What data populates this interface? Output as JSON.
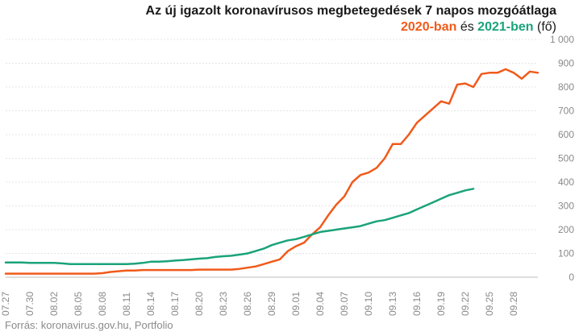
{
  "header": {
    "title": "Az új igazolt koronavírusos megbetegedések 7 napos mozgóátlaga",
    "subtitle_part1": "2020-ban",
    "subtitle_part2": " és ",
    "subtitle_part3": "2021-ben",
    "subtitle_part4": " (fő)"
  },
  "source": "Forrás: koronavirus.gov.hu, Portfolio",
  "colors": {
    "s2020": "#f05a1a",
    "s2021": "#1aa37a",
    "grid": "#e4e4e4",
    "text": "#8a8a8a"
  },
  "chart_data": {
    "type": "line",
    "title": "Az új igazolt koronavírusos megbetegedések 7 napos mozgóátlaga",
    "subtitle": "2020-ban és 2021-ben (fő)",
    "xlabel": "",
    "ylabel": "",
    "ylim": [
      0,
      1000
    ],
    "yticks": [
      "0",
      "100",
      "200",
      "300",
      "400",
      "500",
      "600",
      "700",
      "800",
      "900",
      "1 000"
    ],
    "xticks": [
      "07.27",
      "07.30",
      "08.02",
      "08.05",
      "08.08",
      "08.11",
      "08.14",
      "08.17",
      "08.20",
      "08.23",
      "08.26",
      "08.29",
      "09.01",
      "09.04",
      "09.07",
      "09.10",
      "09.13",
      "09.16",
      "09.19",
      "09.22",
      "09.25",
      "09.28"
    ],
    "grid": true,
    "series": [
      {
        "name": "2020",
        "color": "#f05a1a",
        "values": [
          15,
          15,
          15,
          15,
          15,
          15,
          15,
          15,
          15,
          15,
          15,
          15,
          17,
          22,
          25,
          28,
          28,
          30,
          30,
          30,
          30,
          30,
          30,
          30,
          32,
          32,
          32,
          32,
          32,
          35,
          40,
          45,
          55,
          65,
          75,
          110,
          130,
          145,
          180,
          210,
          260,
          305,
          340,
          400,
          430,
          440,
          460,
          500,
          560,
          560,
          600,
          650,
          680,
          710,
          740,
          730,
          810,
          815,
          800,
          855,
          860,
          860,
          875,
          860,
          835,
          865,
          860
        ]
      },
      {
        "name": "2021",
        "color": "#1aa37a",
        "values": [
          62,
          62,
          62,
          60,
          60,
          60,
          60,
          58,
          55,
          55,
          55,
          55,
          55,
          55,
          55,
          55,
          57,
          60,
          65,
          65,
          67,
          70,
          72,
          75,
          78,
          80,
          85,
          88,
          90,
          95,
          100,
          110,
          120,
          135,
          145,
          155,
          160,
          170,
          180,
          190,
          195,
          200,
          205,
          210,
          215,
          225,
          235,
          240,
          250,
          260,
          270,
          285,
          300,
          315,
          330,
          345,
          355,
          365,
          372
        ]
      }
    ]
  }
}
